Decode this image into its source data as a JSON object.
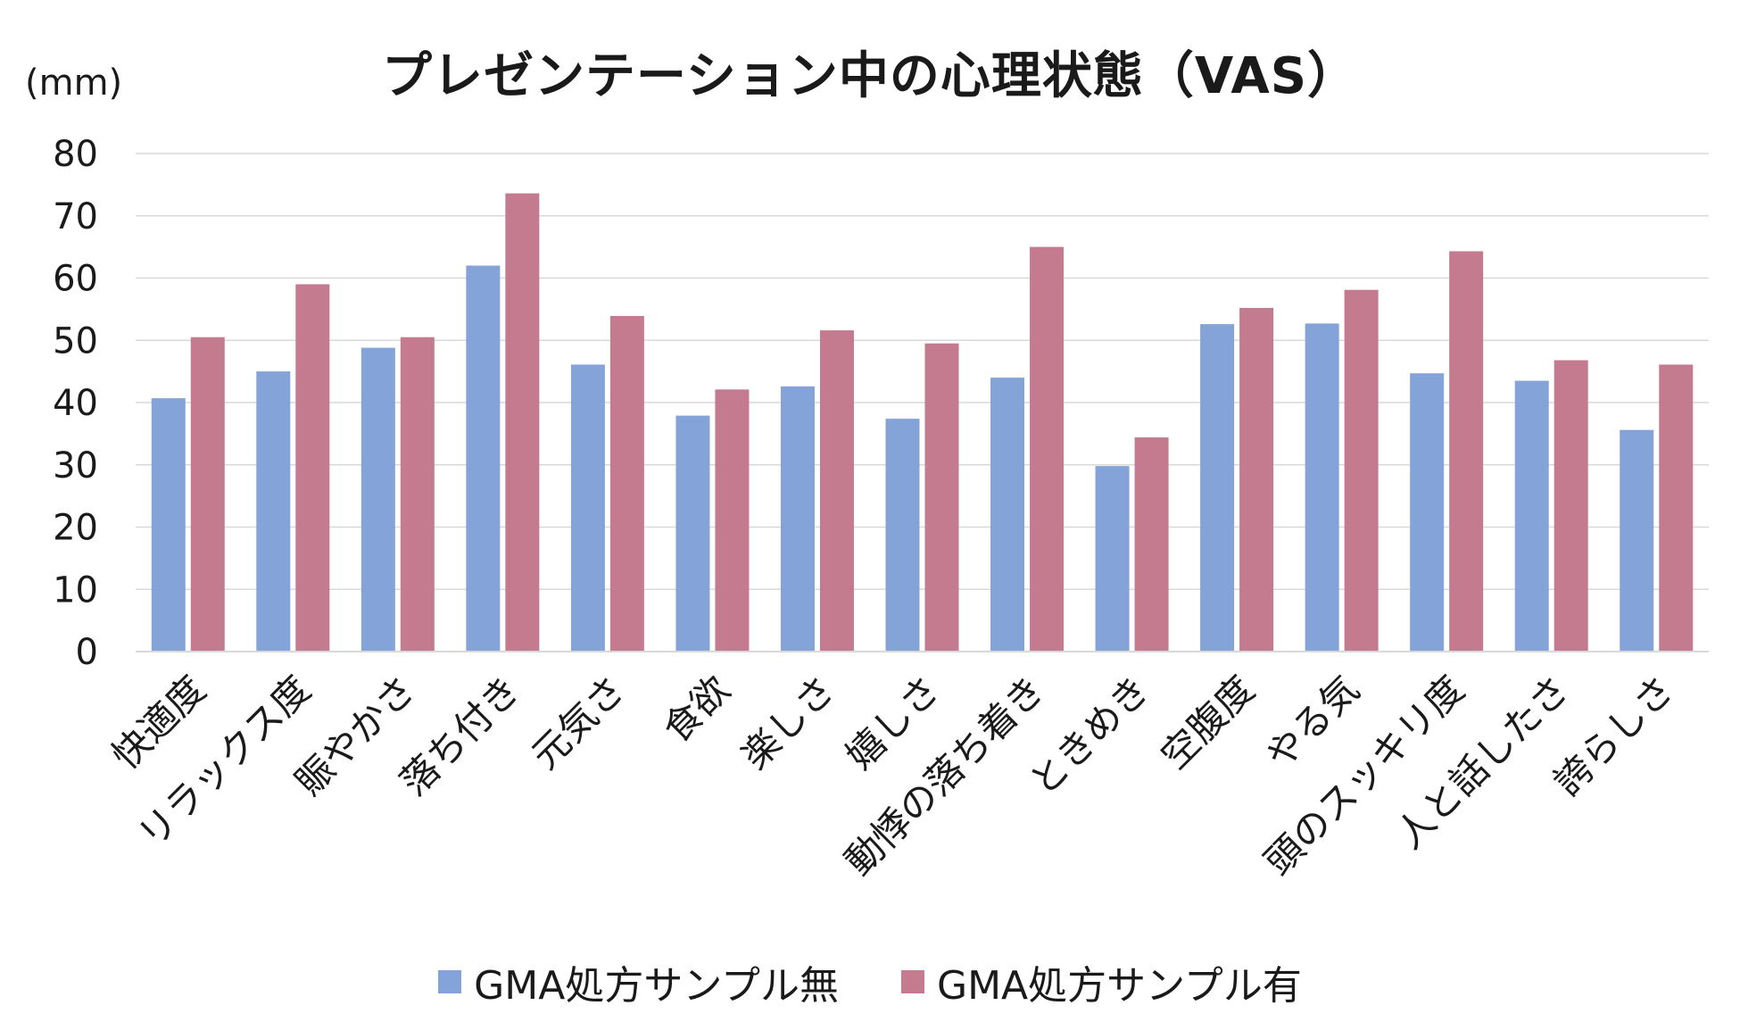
{
  "chart_data": {
    "type": "bar",
    "title": "プレゼンテーション中の心理状態（VAS）",
    "ylabel": "(mm)",
    "xlabel": "",
    "ylim": [
      0,
      80
    ],
    "yticks": [
      0,
      10,
      20,
      30,
      40,
      50,
      60,
      70,
      80
    ],
    "grid": true,
    "legend_position": "bottom",
    "categories": [
      "快適度",
      "リラックス度",
      "賑やかさ",
      "落ち付き",
      "元気さ",
      "食欲",
      "楽しさ",
      "嬉しさ",
      "動悸の落ち着き",
      "ときめき",
      "空腹度",
      "やる気",
      "頭のスッキリ度",
      "人と話したさ",
      "誇らしさ"
    ],
    "series": [
      {
        "name": "GMA処方サンプル無",
        "color": "#84a3d8",
        "values": [
          40.7,
          45,
          48.8,
          62,
          46.1,
          37.9,
          42.6,
          37.4,
          44,
          29.8,
          52.6,
          52.7,
          44.7,
          43.5,
          35.6
        ]
      },
      {
        "name": "GMA処方サンプル有",
        "color": "#c47b90",
        "values": [
          50.5,
          59,
          50.5,
          73.6,
          53.9,
          42.1,
          51.6,
          49.5,
          65,
          34.4,
          55.2,
          58.1,
          64.3,
          46.8,
          46.1
        ]
      }
    ]
  }
}
